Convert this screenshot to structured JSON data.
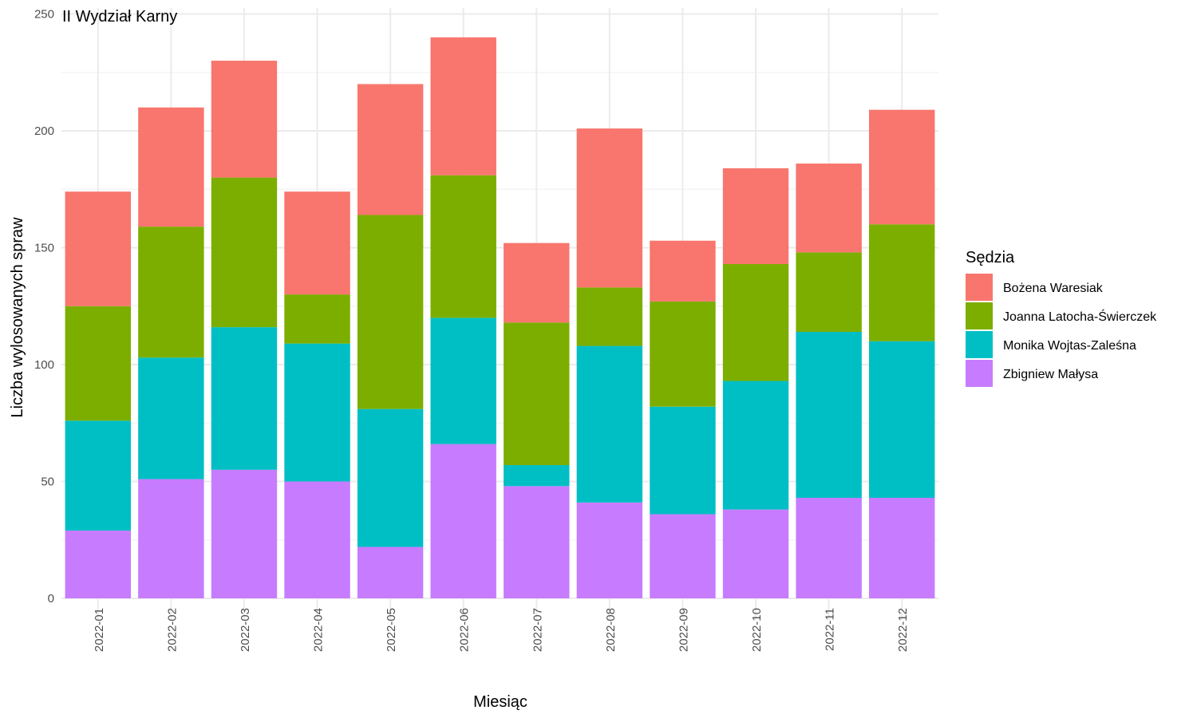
{
  "chart_data": {
    "type": "bar",
    "stacked": true,
    "title": "II Wydział Karny",
    "xlabel": "Miesiąc",
    "ylabel": "Liczba wylosowanych spraw",
    "ylim": [
      0,
      250
    ],
    "yticks": [
      0,
      50,
      100,
      150,
      200,
      250
    ],
    "grid": true,
    "legend_title": "Sędzia",
    "legend_position": "right",
    "categories": [
      "2022-01",
      "2022-02",
      "2022-03",
      "2022-04",
      "2022-05",
      "2022-06",
      "2022-07",
      "2022-08",
      "2022-09",
      "2022-10",
      "2022-11",
      "2022-12"
    ],
    "series": [
      {
        "name": "Bożena Waresiak",
        "color": "#F8766D",
        "values": [
          49,
          51,
          50,
          44,
          56,
          59,
          34,
          68,
          26,
          41,
          38,
          49
        ]
      },
      {
        "name": "Joanna Latocha-Świerczek",
        "color": "#7CAE00",
        "values": [
          49,
          56,
          64,
          21,
          83,
          61,
          61,
          25,
          45,
          50,
          34,
          50
        ]
      },
      {
        "name": "Monika Wojtas-Zaleśna",
        "color": "#00BFC4",
        "values": [
          47,
          52,
          61,
          59,
          59,
          54,
          9,
          67,
          46,
          55,
          71,
          67
        ]
      },
      {
        "name": "Zbigniew Małysa",
        "color": "#C77CFF",
        "values": [
          29,
          51,
          55,
          50,
          22,
          66,
          48,
          41,
          36,
          38,
          43,
          43
        ]
      }
    ]
  }
}
